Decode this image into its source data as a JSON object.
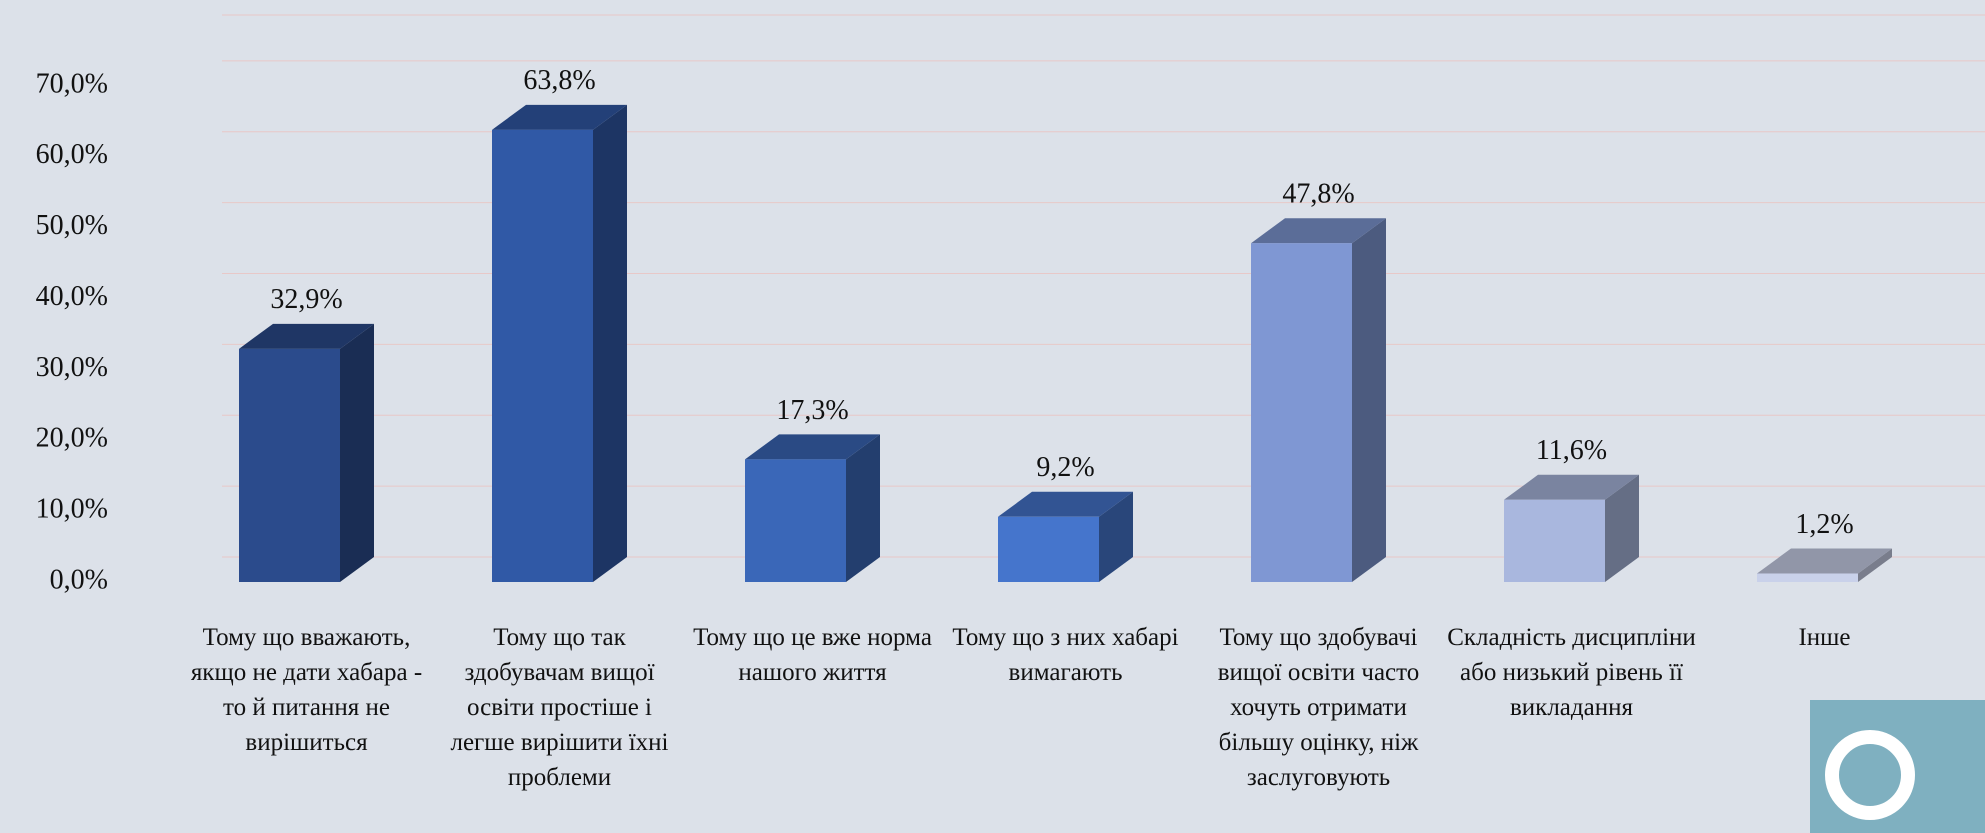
{
  "chart_data": {
    "type": "bar3d",
    "categories": [
      "Тому що вважають, якщо не дати хабара - то й питання не вирішиться",
      "Тому що так здобувачам вищої освіти простіше і легше вирішити їхні проблеми",
      "Тому що це вже норма нашого життя",
      "Тому що з них хабарі вимагають",
      "Тому що здобувачі вищої освіти часто хочуть отримати більшу оцінку, ніж заслуговують",
      "Складність дисципліни або низький рівень її викладання",
      "Інше"
    ],
    "values": [
      32.9,
      63.8,
      17.3,
      9.2,
      47.8,
      11.6,
      1.2
    ],
    "value_labels": [
      "32,9%",
      "63,8%",
      "17,3%",
      "9,2%",
      "47,8%",
      "11,6%",
      "1,2%"
    ],
    "colors": [
      "#2b4b8c",
      "#3059a6",
      "#3a67b8",
      "#4575cc",
      "#7f97d3",
      "#a9b7de",
      "#c9d1ea"
    ],
    "ylim": [
      0,
      80
    ],
    "yticks": [
      {
        "value": 0,
        "label": "0,0%"
      },
      {
        "value": 10,
        "label": "10,0%"
      },
      {
        "value": 20,
        "label": "20,0%"
      },
      {
        "value": 30,
        "label": "30,0%"
      },
      {
        "value": 40,
        "label": "40,0%"
      },
      {
        "value": 50,
        "label": "50,0%"
      },
      {
        "value": 60,
        "label": "60,0%"
      },
      {
        "value": 70,
        "label": "70,0%"
      }
    ],
    "grid": true
  }
}
